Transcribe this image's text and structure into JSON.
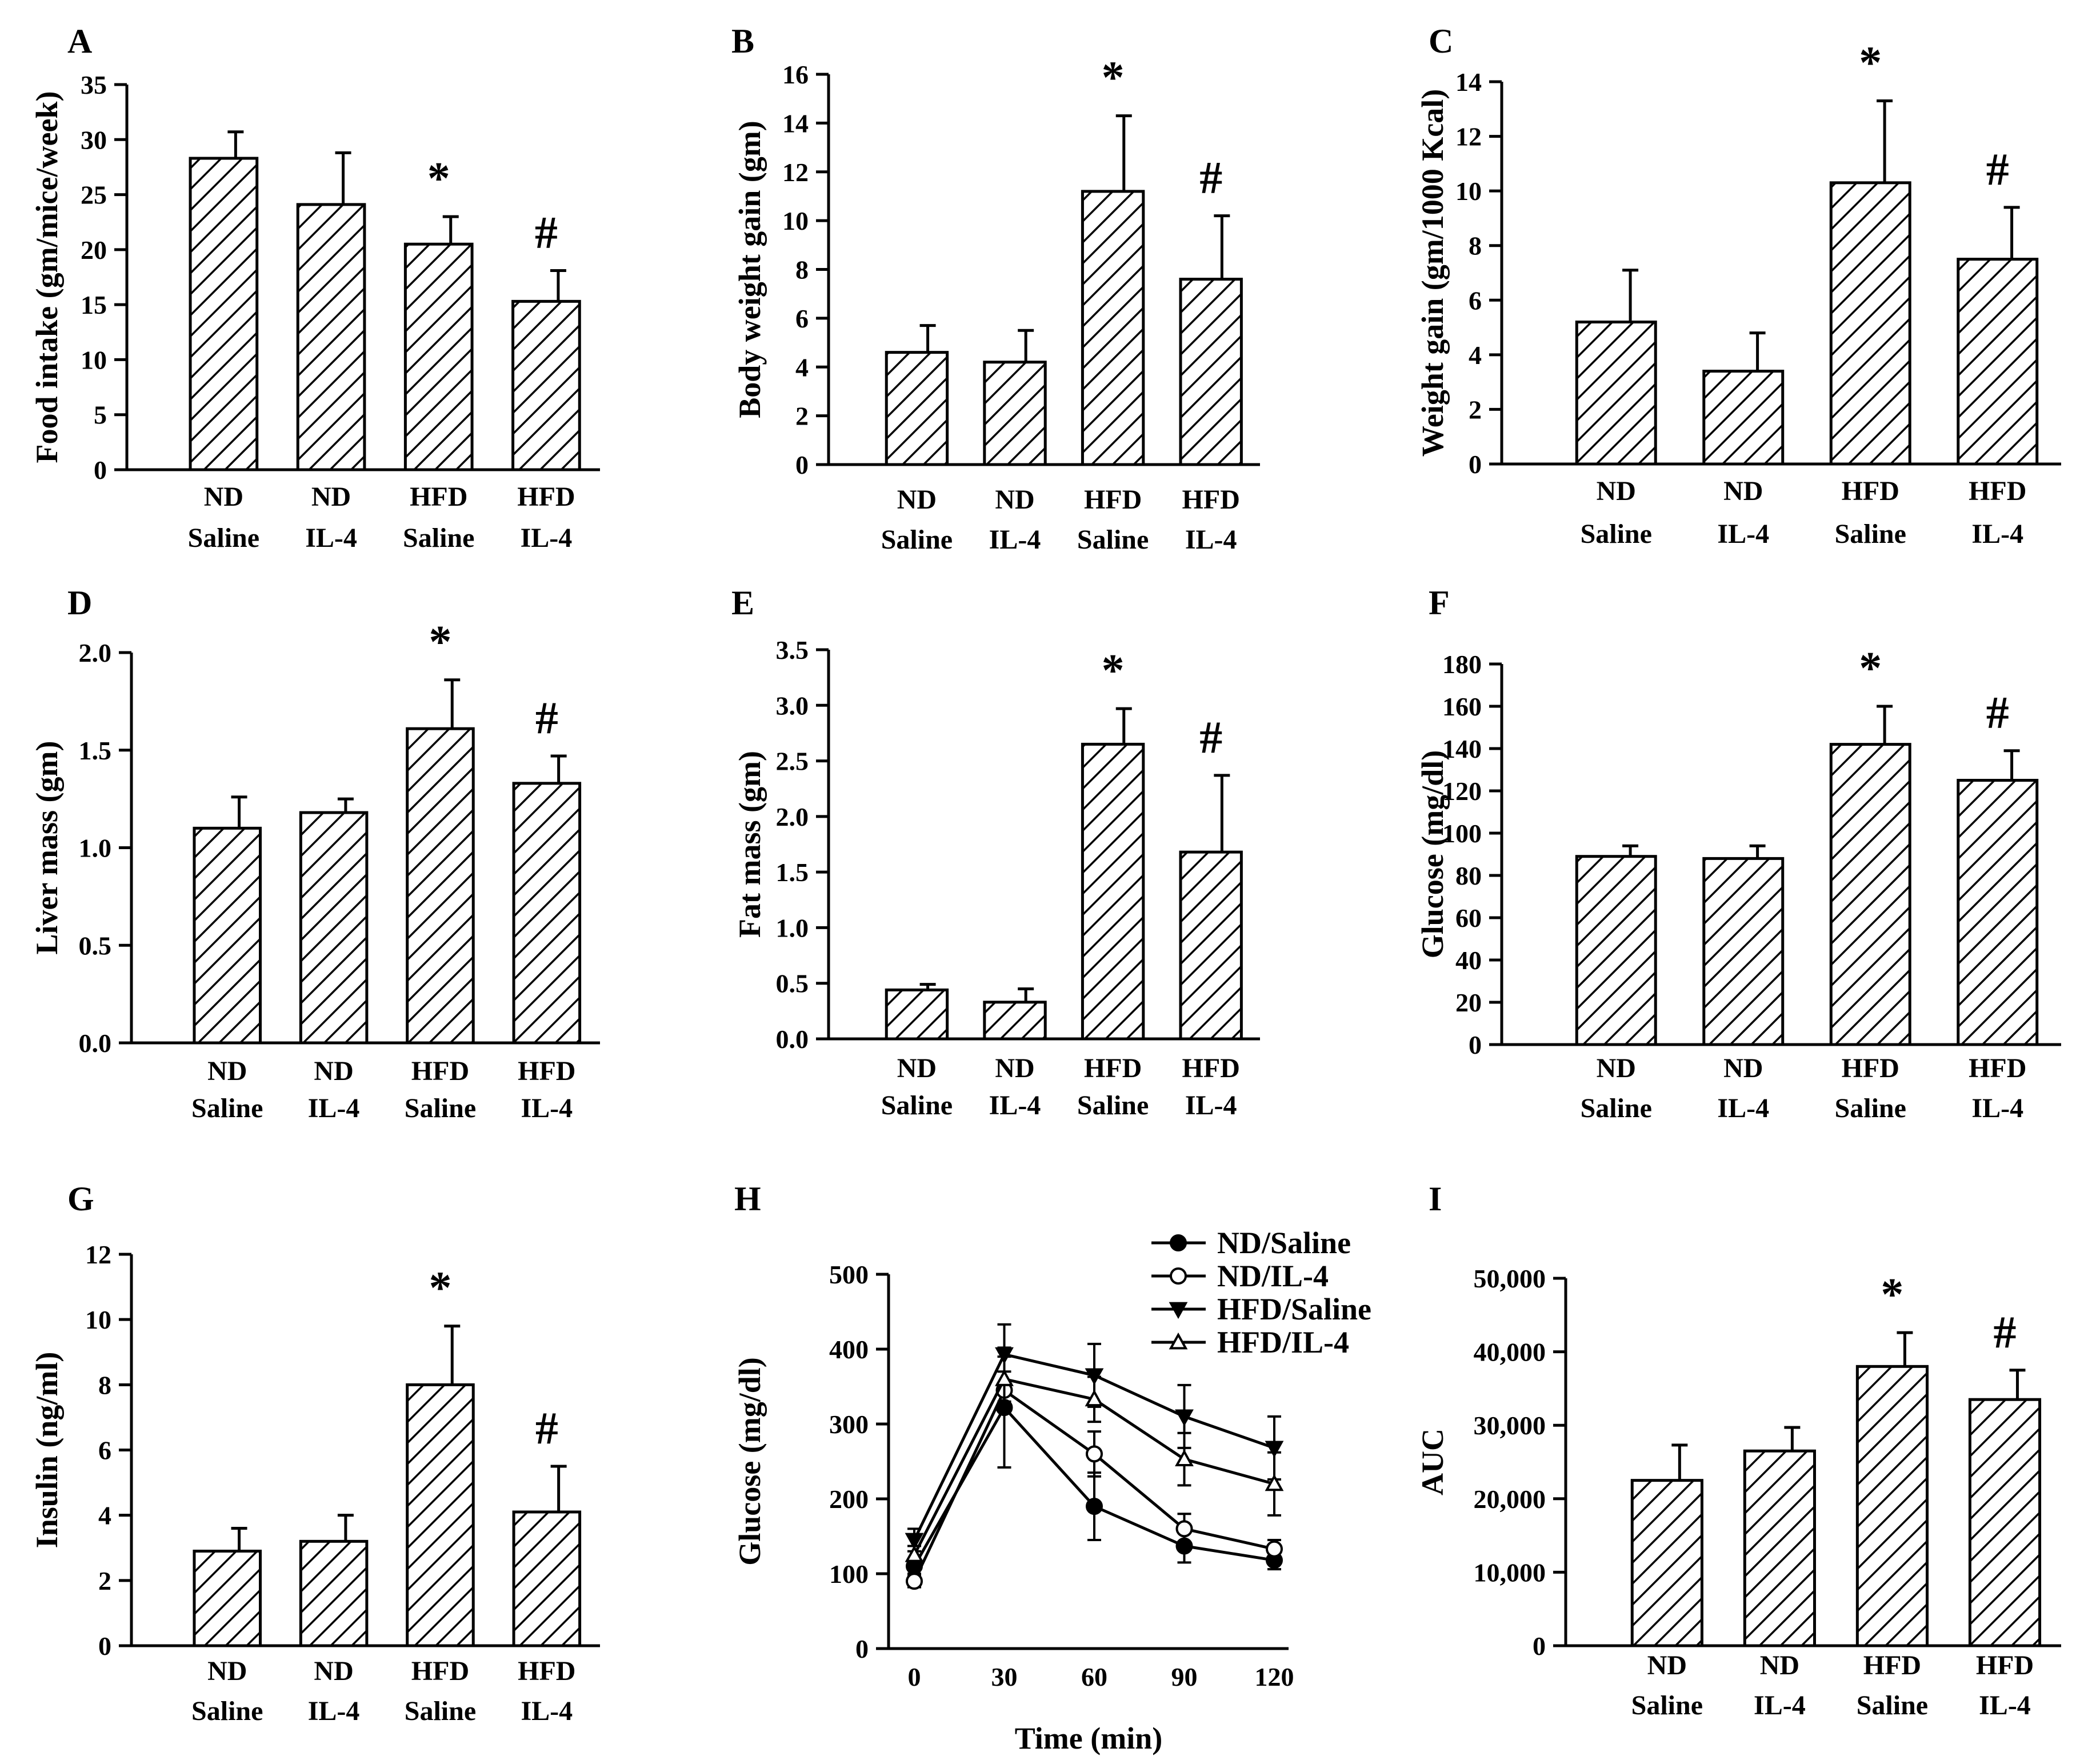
{
  "figure": "multi-panel",
  "chart_data": [
    {
      "panel": "A",
      "type": "bar",
      "ylabel": "Food intake (gm/mice/week)",
      "categories": [
        [
          "ND",
          "Saline"
        ],
        [
          "ND",
          "IL-4"
        ],
        [
          "HFD",
          "Saline"
        ],
        [
          "HFD",
          "IL-4"
        ]
      ],
      "values": [
        28.3,
        24.1,
        20.5,
        15.3
      ],
      "errors": [
        2.4,
        4.7,
        2.5,
        2.8
      ],
      "marks": [
        "",
        "",
        "*",
        "#"
      ],
      "ylim": [
        0,
        35
      ],
      "yticks": [
        "0",
        "5",
        "10",
        "15",
        "20",
        "25",
        "30",
        "35"
      ]
    },
    {
      "panel": "B",
      "type": "bar",
      "ylabel": "Body weight gain (gm)",
      "categories": [
        [
          "ND",
          "Saline"
        ],
        [
          "ND",
          "IL-4"
        ],
        [
          "HFD",
          "Saline"
        ],
        [
          "HFD",
          "IL-4"
        ]
      ],
      "values": [
        4.6,
        4.2,
        11.2,
        7.6
      ],
      "errors": [
        1.1,
        1.3,
        3.1,
        2.6
      ],
      "marks": [
        "",
        "",
        "*",
        "#"
      ],
      "ylim": [
        0,
        16
      ],
      "yticks": [
        "0",
        "2",
        "4",
        "6",
        "8",
        "10",
        "12",
        "14",
        "16"
      ]
    },
    {
      "panel": "C",
      "type": "bar",
      "ylabel": "Weight gain (gm/1000 Kcal)",
      "categories": [
        [
          "ND",
          "Saline"
        ],
        [
          "ND",
          "IL-4"
        ],
        [
          "HFD",
          "Saline"
        ],
        [
          "HFD",
          "IL-4"
        ]
      ],
      "values": [
        5.2,
        3.4,
        10.3,
        7.5
      ],
      "errors": [
        1.9,
        1.4,
        3.0,
        1.9
      ],
      "marks": [
        "",
        "",
        "*",
        "#"
      ],
      "ylim": [
        0,
        14
      ],
      "yticks": [
        "0",
        "2",
        "4",
        "6",
        "8",
        "10",
        "12",
        "14"
      ]
    },
    {
      "panel": "D",
      "type": "bar",
      "ylabel": "Liver mass (gm)",
      "categories": [
        [
          "ND",
          "Saline"
        ],
        [
          "ND",
          "IL-4"
        ],
        [
          "HFD",
          "Saline"
        ],
        [
          "HFD",
          "IL-4"
        ]
      ],
      "values": [
        1.1,
        1.18,
        1.61,
        1.33
      ],
      "errors": [
        0.16,
        0.07,
        0.25,
        0.14
      ],
      "marks": [
        "",
        "",
        "*",
        "#"
      ],
      "ylim": [
        0,
        2.0
      ],
      "yticks": [
        "0.0",
        "0.5",
        "1.0",
        "1.5",
        "2.0"
      ]
    },
    {
      "panel": "E",
      "type": "bar",
      "ylabel": "Fat mass (gm)",
      "categories": [
        [
          "ND",
          "Saline"
        ],
        [
          "ND",
          "IL-4"
        ],
        [
          "HFD",
          "Saline"
        ],
        [
          "HFD",
          "IL-4"
        ]
      ],
      "values": [
        0.44,
        0.33,
        2.65,
        1.68
      ],
      "errors": [
        0.05,
        0.12,
        0.32,
        0.69
      ],
      "marks": [
        "",
        "",
        "*",
        "#"
      ],
      "ylim": [
        0,
        3.5
      ],
      "yticks": [
        "0.0",
        "0.5",
        "1.0",
        "1.5",
        "2.0",
        "2.5",
        "3.0",
        "3.5"
      ]
    },
    {
      "panel": "F",
      "type": "bar",
      "ylabel": "Glucose (mg/dl)",
      "categories": [
        [
          "ND",
          "Saline"
        ],
        [
          "ND",
          "IL-4"
        ],
        [
          "HFD",
          "Saline"
        ],
        [
          "HFD",
          "IL-4"
        ]
      ],
      "values": [
        89,
        88,
        142,
        125
      ],
      "errors": [
        5,
        6,
        18,
        14
      ],
      "marks": [
        "",
        "",
        "*",
        "#"
      ],
      "ylim": [
        0,
        180
      ],
      "yticks": [
        "0",
        "20",
        "40",
        "60",
        "80",
        "100",
        "120",
        "140",
        "160",
        "180"
      ]
    },
    {
      "panel": "G",
      "type": "bar",
      "ylabel": "Insulin (ng/ml)",
      "categories": [
        [
          "ND",
          "Saline"
        ],
        [
          "ND",
          "IL-4"
        ],
        [
          "HFD",
          "Saline"
        ],
        [
          "HFD",
          "IL-4"
        ]
      ],
      "values": [
        2.9,
        3.2,
        8.0,
        4.1
      ],
      "errors": [
        0.7,
        0.8,
        1.8,
        1.4
      ],
      "marks": [
        "",
        "",
        "*",
        "#"
      ],
      "ylim": [
        0,
        12
      ],
      "yticks": [
        "0",
        "2",
        "4",
        "6",
        "8",
        "10",
        "12"
      ]
    },
    {
      "panel": "H",
      "type": "line",
      "xlabel": "Time (min)",
      "ylabel": "Glucose (mg/dl)",
      "x": [
        0,
        30,
        60,
        90,
        120
      ],
      "xticks": [
        "0",
        "30",
        "60",
        "90",
        "120"
      ],
      "ylim": [
        0,
        500
      ],
      "yticks": [
        "0",
        "100",
        "200",
        "300",
        "400",
        "500"
      ],
      "legend_position": "top-right",
      "series": [
        {
          "name": "ND/Saline",
          "marker": "filled-circle",
          "values": [
            110,
            322,
            190,
            137,
            118
          ],
          "errors": [
            10,
            80,
            45,
            22,
            12
          ]
        },
        {
          "name": "ND/IL-4",
          "marker": "open-circle",
          "values": [
            90,
            345,
            260,
            160,
            133
          ],
          "errors": [
            8,
            25,
            30,
            20,
            12
          ]
        },
        {
          "name": "HFD/Saline",
          "marker": "filled-triangle-down",
          "values": [
            145,
            393,
            365,
            310,
            268
          ],
          "errors": [
            15,
            40,
            42,
            42,
            42
          ]
        },
        {
          "name": "HFD/IL-4",
          "marker": "open-triangle-up",
          "values": [
            125,
            360,
            333,
            253,
            220
          ],
          "errors": [
            12,
            30,
            30,
            35,
            42
          ]
        }
      ]
    },
    {
      "panel": "I",
      "type": "bar",
      "ylabel": "AUC",
      "categories": [
        [
          "ND",
          "Saline"
        ],
        [
          "ND",
          "IL-4"
        ],
        [
          "HFD",
          "Saline"
        ],
        [
          "HFD",
          "IL-4"
        ]
      ],
      "values": [
        22500,
        26500,
        38000,
        33500
      ],
      "errors": [
        4800,
        3200,
        4600,
        4000
      ],
      "marks": [
        "",
        "",
        "*",
        "#"
      ],
      "ylim": [
        0,
        50000
      ],
      "yticks": [
        "0",
        "10,000",
        "20,000",
        "30,000",
        "40,000",
        "50,000"
      ]
    }
  ]
}
